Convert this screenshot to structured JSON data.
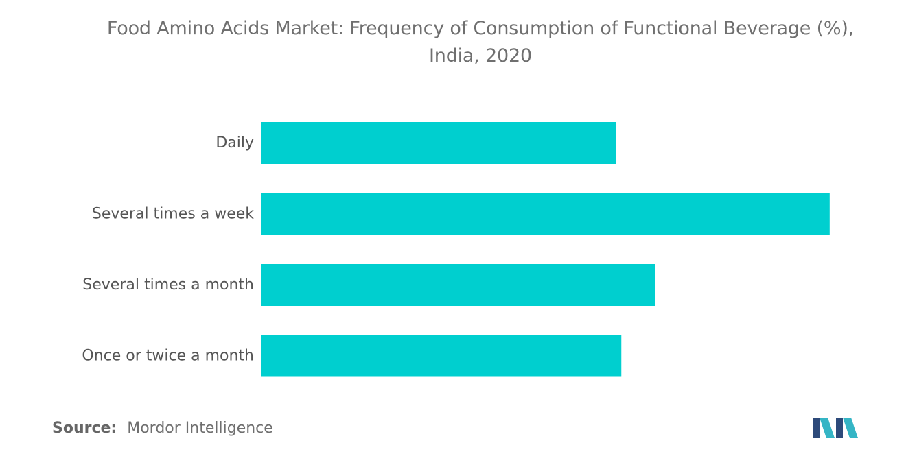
{
  "title_line1": "Food Amino Acids Market: Frequency of Consumption of Functional Beverage (%),",
  "title_line2": "India, 2020",
  "source_label": "Source:",
  "source_value": "Mordor Intelligence",
  "colors": {
    "bar": "#00cfcf",
    "text": "#6f6f6f",
    "logo_dark": "#2d4a7a",
    "logo_teal": "#35b5c5"
  },
  "chart_data": {
    "type": "bar",
    "orientation": "horizontal",
    "categories": [
      "Daily",
      "Several times a week",
      "Several times a month",
      "Once or twice a month"
    ],
    "values": [
      50,
      80,
      55.5,
      50.7
    ],
    "xlim": [
      0,
      100
    ],
    "grid": false,
    "axis_visible": false
  }
}
